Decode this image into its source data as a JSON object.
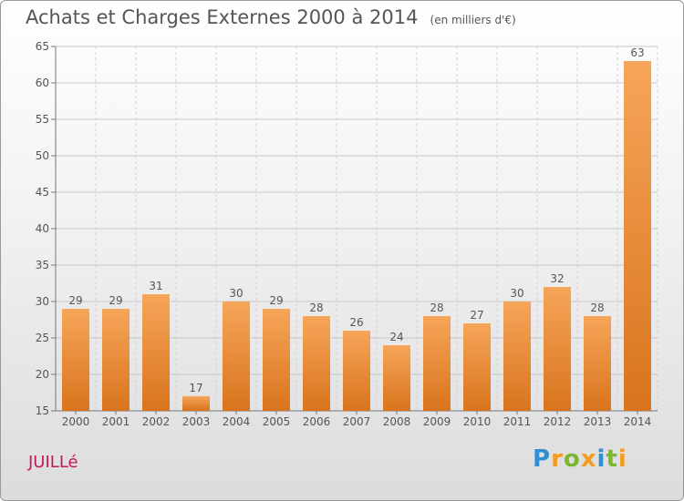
{
  "header": {
    "title": "Achats et Charges Externes 2000 à 2014",
    "subtitle": "(en milliers d'€)"
  },
  "footer": {
    "commune": "JUILLé",
    "logo": "Proxiti"
  },
  "colors": {
    "bar_light": "#f7a55a",
    "bar_dark": "#d8741d",
    "commune": "#c2185b",
    "text": "#555555"
  },
  "chart_data": {
    "type": "bar",
    "categories": [
      "2000",
      "2001",
      "2002",
      "2003",
      "2004",
      "2005",
      "2006",
      "2007",
      "2008",
      "2009",
      "2010",
      "2011",
      "2012",
      "2013",
      "2014"
    ],
    "values": [
      29,
      29,
      31,
      17,
      30,
      29,
      28,
      26,
      24,
      28,
      27,
      30,
      32,
      28,
      63
    ],
    "title": "Achats et Charges Externes 2000 à 2014",
    "subtitle": "(en milliers d'€)",
    "ylim": [
      15,
      65
    ],
    "yticks": [
      15,
      20,
      25,
      30,
      35,
      40,
      45,
      50,
      55,
      60,
      65
    ],
    "grid": true,
    "data_labels": true
  }
}
